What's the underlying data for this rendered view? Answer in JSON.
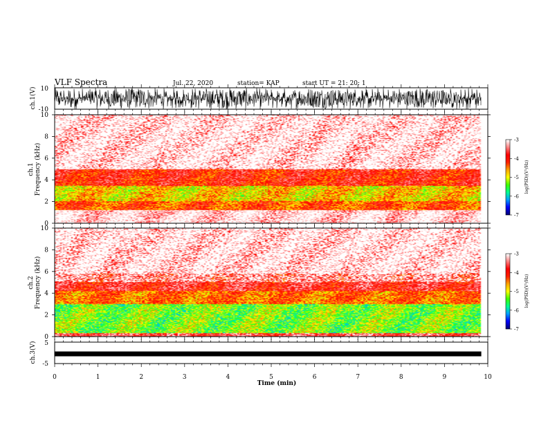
{
  "header": {
    "title": "VLF Spectra",
    "date": "Jul. 22, 2020",
    "station": "station= KAP",
    "start": "start UT = 21: 20: 1"
  },
  "chart_data": [
    {
      "type": "line",
      "name": "waveform-ch1",
      "ylabel": "ch.1(V)",
      "ylim": [
        -10,
        10
      ],
      "yticks": [
        "10",
        "-10"
      ],
      "xlim": [
        0,
        10
      ]
    },
    {
      "type": "heatmap",
      "name": "spectrogram-ch1",
      "ylabel": "ch.1\nFrequency (kHz)",
      "ylim": [
        0,
        10
      ],
      "yticks": [
        "10",
        "8",
        "6",
        "4",
        "2",
        "0"
      ],
      "xlim": [
        0,
        10
      ],
      "data_end_min": 9.85,
      "colorbar": {
        "label": "log(PSD)(V²/Hz)",
        "range": [
          -7,
          -3
        ],
        "ticks": [
          "-3",
          "-4",
          "-5",
          "-6",
          "-7"
        ]
      },
      "bands": [
        {
          "from_khz": 0,
          "to_khz": 1.2,
          "level": -3.0
        },
        {
          "from_khz": 1.2,
          "to_khz": 2.0,
          "level": -4.3
        },
        {
          "from_khz": 2.0,
          "to_khz": 3.4,
          "level": -4.8
        },
        {
          "from_khz": 3.4,
          "to_khz": 5.0,
          "level": -4.0
        },
        {
          "from_khz": 5.0,
          "to_khz": 10,
          "level": -3.2
        }
      ]
    },
    {
      "type": "heatmap",
      "name": "spectrogram-ch2",
      "ylabel": "ch.2\nFrequency (kHz)",
      "ylim": [
        0,
        10
      ],
      "yticks": [
        "10",
        "8",
        "6",
        "4",
        "2",
        "0"
      ],
      "xlim": [
        0,
        10
      ],
      "data_end_min": 9.85,
      "colorbar": {
        "label": "log(PSD)(V²/Hz)",
        "range": [
          -7,
          -3
        ],
        "ticks": [
          "-3",
          "-4",
          "-5",
          "-6",
          "-7"
        ]
      },
      "bands": [
        {
          "from_khz": 0,
          "to_khz": 0.3,
          "level": -3.6
        },
        {
          "from_khz": 0.3,
          "to_khz": 3.0,
          "level": -5.3
        },
        {
          "from_khz": 3.0,
          "to_khz": 4.2,
          "level": -4.4
        },
        {
          "from_khz": 4.2,
          "to_khz": 5.8,
          "level": -3.8
        },
        {
          "from_khz": 5.8,
          "to_khz": 10,
          "level": -3.2
        }
      ]
    },
    {
      "type": "line",
      "name": "waveform-ch3",
      "ylabel": "ch.3(V)",
      "ylim": [
        -5,
        5
      ],
      "yticks": [
        "5",
        "0",
        "-5"
      ],
      "xlim": [
        0,
        10
      ],
      "level_v": -0.5
    }
  ],
  "xaxis": {
    "label": "Time (min)",
    "ticks": [
      "0",
      "1",
      "2",
      "3",
      "4",
      "5",
      "6",
      "7",
      "8",
      "9",
      "10"
    ]
  },
  "colors": {
    "trace": "#000000",
    "colormap": [
      "#00007a",
      "#0000ff",
      "#00a0ff",
      "#00ff90",
      "#40ff00",
      "#ffff00",
      "#ffa500",
      "#ff2000",
      "#ff0000",
      "#ff8080",
      "#ffffff"
    ]
  }
}
